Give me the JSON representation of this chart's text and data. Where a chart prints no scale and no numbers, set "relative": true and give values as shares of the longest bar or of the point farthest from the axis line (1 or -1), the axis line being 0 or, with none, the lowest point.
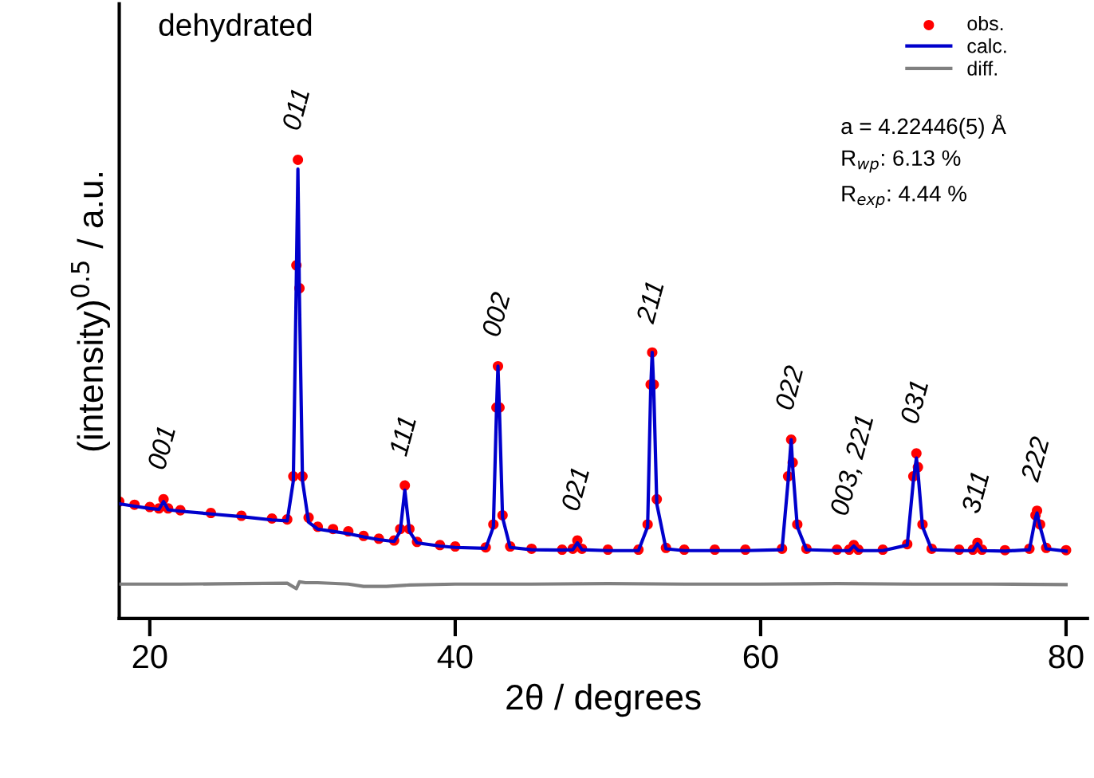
{
  "chart_data": {
    "type": "line",
    "relative": true,
    "xlabel": "2θ / degrees",
    "ylabel": "(intensity)$^{0.5}$ / a.u.",
    "xlim": [
      18,
      81.4
    ],
    "xticks": [
      20,
      40,
      60,
      80
    ],
    "grid": false,
    "legend": "top right",
    "x": [
      18,
      19,
      20,
      20.6,
      20.9,
      21.2,
      22,
      24,
      26,
      28,
      29,
      29.4,
      29.6,
      29.7,
      29.8,
      30.0,
      30.4,
      31,
      32,
      33,
      34,
      35,
      36,
      36.4,
      36.7,
      37.0,
      37.5,
      39,
      40,
      42,
      42.5,
      42.7,
      42.8,
      42.9,
      43.1,
      43.6,
      45,
      47,
      47.7,
      48.0,
      48.3,
      50,
      52,
      52.6,
      52.8,
      52.9,
      53.0,
      53.2,
      53.8,
      55,
      57,
      59,
      61.4,
      61.8,
      62.0,
      62.1,
      62.4,
      63,
      65,
      65.8,
      66.1,
      66.4,
      68,
      69.6,
      70.0,
      70.2,
      70.3,
      70.6,
      71.2,
      73,
      73.9,
      74.2,
      74.5,
      76,
      77.6,
      78.0,
      78.1,
      78.3,
      78.7,
      80
    ],
    "series": [
      {
        "name": "obs.",
        "type": "scatter",
        "marker": "circle",
        "color": "#ff0000",
        "values": [
          0.255,
          0.248,
          0.243,
          0.24,
          0.26,
          0.24,
          0.236,
          0.23,
          0.224,
          0.218,
          0.216,
          0.31,
          0.77,
          1.0,
          0.72,
          0.31,
          0.22,
          0.2,
          0.195,
          0.19,
          0.18,
          0.174,
          0.17,
          0.195,
          0.29,
          0.195,
          0.167,
          0.16,
          0.157,
          0.155,
          0.205,
          0.46,
          0.55,
          0.46,
          0.225,
          0.157,
          0.152,
          0.15,
          0.152,
          0.17,
          0.152,
          0.15,
          0.15,
          0.205,
          0.51,
          0.58,
          0.51,
          0.26,
          0.154,
          0.15,
          0.15,
          0.15,
          0.152,
          0.31,
          0.39,
          0.34,
          0.205,
          0.152,
          0.15,
          0.15,
          0.16,
          0.15,
          0.15,
          0.162,
          0.31,
          0.36,
          0.33,
          0.205,
          0.152,
          0.15,
          0.15,
          0.165,
          0.15,
          0.149,
          0.152,
          0.225,
          0.235,
          0.205,
          0.154,
          0.149
        ]
      },
      {
        "name": "calc.",
        "color": "#0000cc",
        "values": [
          0.25,
          0.245,
          0.24,
          0.238,
          0.255,
          0.237,
          0.234,
          0.228,
          0.222,
          0.215,
          0.213,
          0.3,
          0.75,
          0.98,
          0.7,
          0.3,
          0.21,
          0.195,
          0.19,
          0.185,
          0.178,
          0.172,
          0.168,
          0.19,
          0.28,
          0.19,
          0.165,
          0.158,
          0.155,
          0.153,
          0.2,
          0.45,
          0.55,
          0.45,
          0.22,
          0.155,
          0.15,
          0.149,
          0.15,
          0.165,
          0.15,
          0.148,
          0.148,
          0.2,
          0.5,
          0.58,
          0.5,
          0.25,
          0.152,
          0.148,
          0.148,
          0.148,
          0.15,
          0.3,
          0.39,
          0.33,
          0.2,
          0.15,
          0.148,
          0.148,
          0.158,
          0.148,
          0.148,
          0.16,
          0.3,
          0.35,
          0.32,
          0.2,
          0.15,
          0.148,
          0.148,
          0.163,
          0.148,
          0.147,
          0.15,
          0.22,
          0.23,
          0.2,
          0.152,
          0.147
        ]
      },
      {
        "name": "diff.",
        "color": "#808080",
        "x": [
          18,
          22,
          26,
          29,
          29.6,
          29.8,
          30.2,
          31,
          33,
          34,
          35.5,
          37,
          40,
          45,
          50,
          55,
          60,
          65,
          70,
          75,
          80
        ],
        "values": [
          0.075,
          0.075,
          0.076,
          0.077,
          0.065,
          0.08,
          0.078,
          0.078,
          0.075,
          0.07,
          0.07,
          0.073,
          0.075,
          0.075,
          0.076,
          0.075,
          0.075,
          0.076,
          0.075,
          0.075,
          0.074
        ]
      }
    ],
    "annotations": [
      {
        "text": "001",
        "x": 20.9,
        "y": 0.26
      },
      {
        "text": "011",
        "x": 29.7,
        "y": 1.0
      },
      {
        "text": "111",
        "x": 36.7,
        "y": 0.29
      },
      {
        "text": "002",
        "x": 42.8,
        "y": 0.55
      },
      {
        "text": "021",
        "x": 48.0,
        "y": 0.17
      },
      {
        "text": "211",
        "x": 52.9,
        "y": 0.58
      },
      {
        "text": "022",
        "x": 62.0,
        "y": 0.39
      },
      {
        "text": "003, 221",
        "x": 66.1,
        "y": 0.16
      },
      {
        "text": "031",
        "x": 70.2,
        "y": 0.36
      },
      {
        "text": "311",
        "x": 74.2,
        "y": 0.165
      },
      {
        "text": "222",
        "x": 78.1,
        "y": 0.235
      },
      "dehydrated",
      "a = 4.22446(5) Å",
      "R$_{wp}$: 6.13 %",
      "R$_{exp}$: 4.44 %"
    ]
  }
}
